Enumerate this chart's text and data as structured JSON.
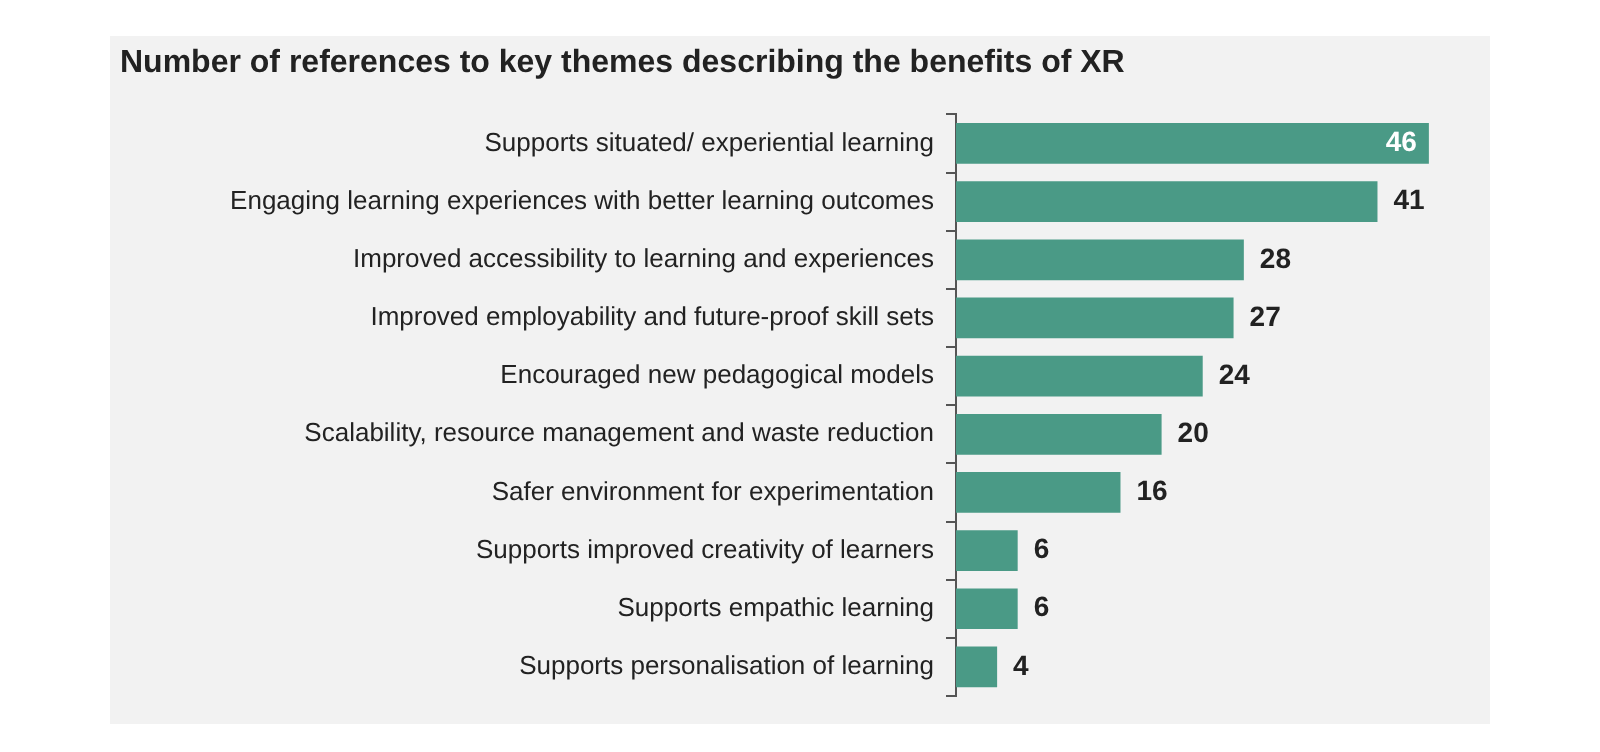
{
  "chart_data": {
    "type": "bar",
    "orientation": "horizontal",
    "title": "Number of references to key themes describing the benefits of XR",
    "categories": [
      "Supports situated/ experiential learning",
      "Engaging learning experiences with better learning outcomes",
      "Improved accessibility to learning and experiences",
      "Improved employability and future-proof skill sets",
      "Encouraged new pedagogical models",
      "Scalability, resource management and waste reduction",
      "Safer environment for experimentation",
      "Supports improved creativity of learners",
      "Supports empathic learning",
      "Supports personalisation of learning"
    ],
    "values": [
      46,
      41,
      28,
      27,
      24,
      20,
      16,
      6,
      6,
      4
    ],
    "color": "#4a9a86",
    "data_labels": true,
    "grid": false,
    "legend": false
  }
}
